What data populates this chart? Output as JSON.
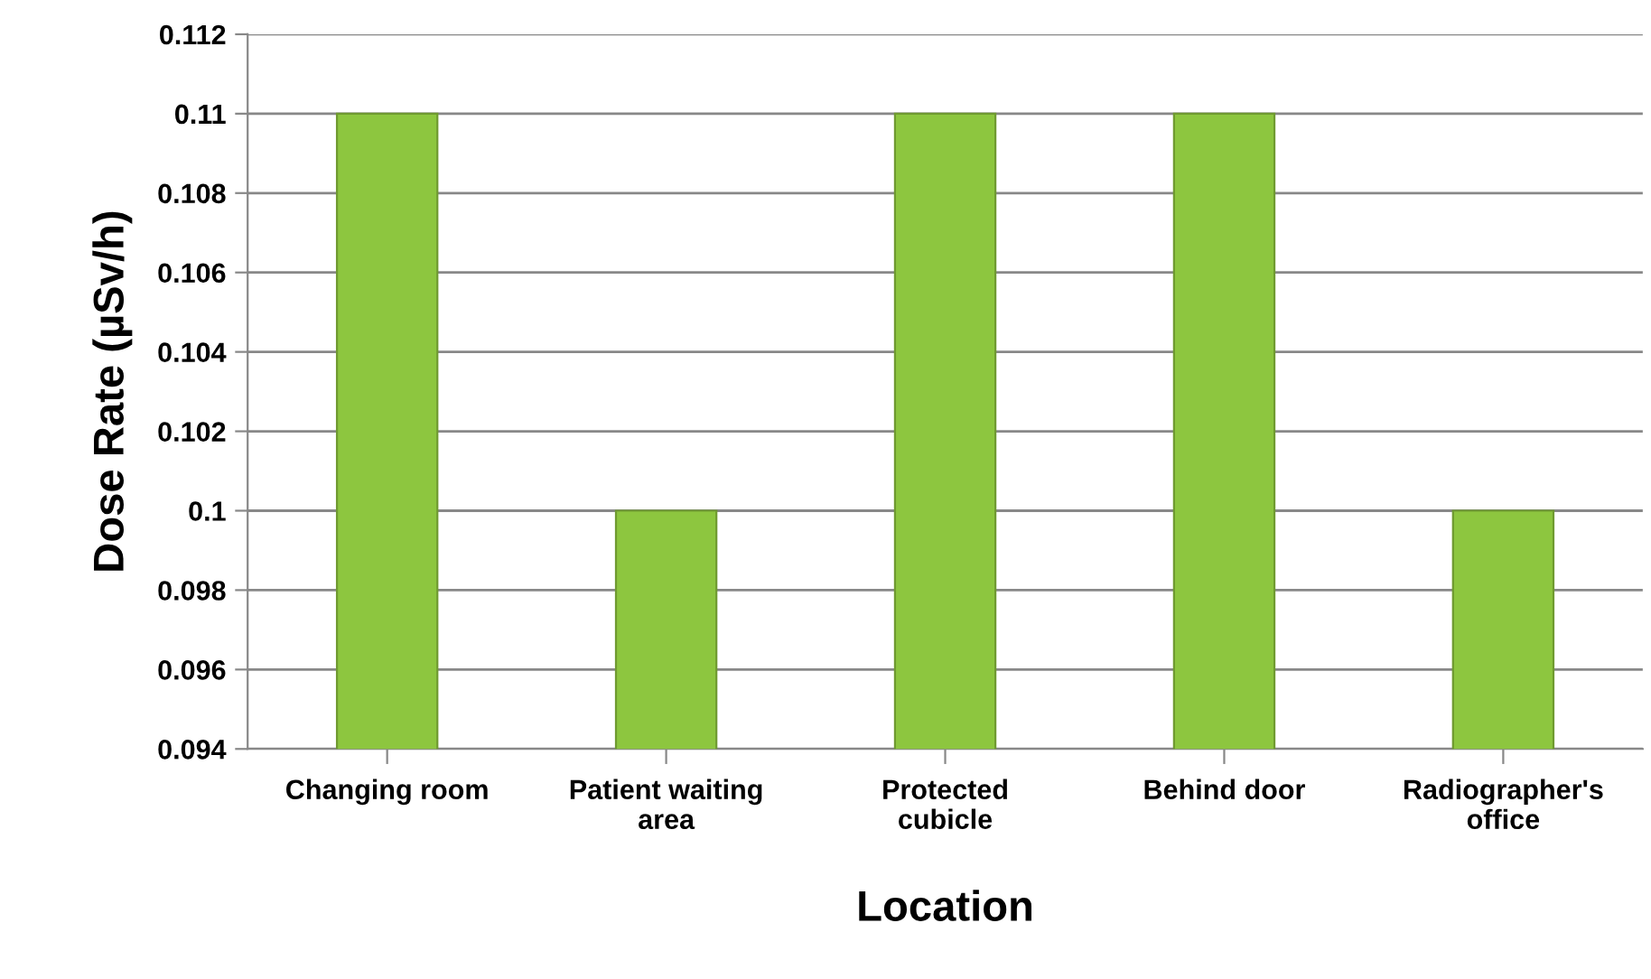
{
  "chart_data": {
    "type": "bar",
    "categories": [
      "Changing room",
      "Patient waiting\narea",
      "Protected\ncubicle",
      "Behind door",
      "Radiographer's\noffice"
    ],
    "values": [
      0.11,
      0.1,
      0.11,
      0.11,
      0.1
    ],
    "color": "#8dc63f",
    "xlabel": "Location",
    "ylabel": "Dose Rate (µSv/h)",
    "ylim": [
      0.094,
      0.112
    ],
    "yticks": [
      0.094,
      0.096,
      0.098,
      0.1,
      0.102,
      0.104,
      0.106,
      0.108,
      0.11,
      0.112
    ],
    "grid": "y"
  }
}
